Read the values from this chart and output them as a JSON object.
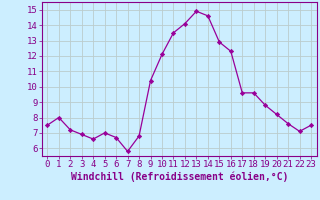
{
  "x": [
    0,
    1,
    2,
    3,
    4,
    5,
    6,
    7,
    8,
    9,
    10,
    11,
    12,
    13,
    14,
    15,
    16,
    17,
    18,
    19,
    20,
    21,
    22,
    23
  ],
  "y": [
    7.5,
    8.0,
    7.2,
    6.9,
    6.6,
    7.0,
    6.7,
    5.8,
    6.8,
    10.4,
    12.1,
    13.5,
    14.1,
    14.9,
    14.6,
    12.9,
    12.3,
    9.6,
    9.6,
    8.8,
    8.2,
    7.6,
    7.1,
    7.5
  ],
  "line_color": "#990099",
  "marker": "D",
  "marker_size": 2.2,
  "bg_color": "#cceeff",
  "grid_color": "#bbcccc",
  "xlabel": "Windchill (Refroidissement éolien,°C)",
  "xlim": [
    -0.5,
    23.5
  ],
  "ylim": [
    5.5,
    15.5
  ],
  "yticks": [
    6,
    7,
    8,
    9,
    10,
    11,
    12,
    13,
    14,
    15
  ],
  "xticks": [
    0,
    1,
    2,
    3,
    4,
    5,
    6,
    7,
    8,
    9,
    10,
    11,
    12,
    13,
    14,
    15,
    16,
    17,
    18,
    19,
    20,
    21,
    22,
    23
  ],
  "label_color": "#880088",
  "tick_color": "#880088",
  "font_size": 6.5,
  "xlabel_fontsize": 7.0,
  "spine_color": "#880088"
}
